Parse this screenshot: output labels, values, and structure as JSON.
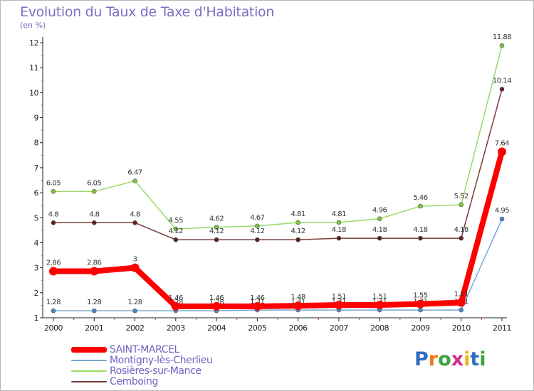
{
  "title": "Evolution du Taux de Taxe d'Habitation",
  "subtitle": "(en %)",
  "logo": {
    "text": "Proxiti",
    "letter_colors": [
      "#2e6fc0",
      "#f07a1a",
      "#3aa33a",
      "#d82c8a",
      "#f0b21a",
      "#2e6fc0",
      "#3aa33a"
    ]
  },
  "chart_data": {
    "type": "line",
    "categories": [
      "2000",
      "2001",
      "2002",
      "2003",
      "2004",
      "2005",
      "2006",
      "2007",
      "2008",
      "2009",
      "2010",
      "2011"
    ],
    "ylim": [
      1,
      12
    ],
    "yticks": [
      "1",
      "2",
      "3",
      "4",
      "5",
      "6",
      "7",
      "8",
      "9",
      "10",
      "11",
      "12"
    ],
    "grid": false,
    "legend_position": "bottom-left",
    "series": [
      {
        "name": "Rosières-sur-Mance",
        "color": "#99d966",
        "marker": "#7cc63e",
        "width": 1.5,
        "values": [
          6.05,
          6.05,
          6.47,
          4.55,
          4.62,
          4.67,
          4.81,
          4.81,
          4.96,
          5.46,
          5.52,
          11.88
        ],
        "labels": [
          "6.05",
          "6.05",
          "6.47",
          "4.55",
          "4.62",
          "4.67",
          "4.81",
          "4.81",
          "4.96",
          "5.46",
          "5.52",
          "11.88"
        ]
      },
      {
        "name": "Cemboing",
        "color": "#7a3b3b",
        "marker": "#5e1f1f",
        "width": 1.5,
        "values": [
          4.8,
          4.8,
          4.8,
          4.12,
          4.12,
          4.12,
          4.12,
          4.18,
          4.18,
          4.18,
          4.18,
          10.14
        ],
        "labels": [
          "4.8",
          "4.8",
          "4.8",
          "4.12",
          "4.12",
          "4.12",
          "4.12",
          "4.18",
          "4.18",
          "4.18",
          "4.18",
          "10.14"
        ]
      },
      {
        "name": "Montigny-lès-Cherlieu",
        "color": "#7aa6cf",
        "marker": "#4f86c2",
        "width": 1.5,
        "values": [
          1.28,
          1.28,
          1.28,
          1.28,
          1.28,
          1.31,
          1.31,
          1.31,
          1.31,
          1.31,
          1.31,
          4.95
        ],
        "labels": [
          "1.28",
          "1.28",
          "1.28",
          "1.28",
          "1.28",
          "1.31",
          "1.31",
          "1.31",
          "1.31",
          "1.31",
          "1.31",
          "4.95"
        ]
      },
      {
        "name": "SAINT-MARCEL",
        "color": "#ff0000",
        "marker": "#ff0000",
        "width": 8,
        "values": [
          2.86,
          2.86,
          3,
          1.46,
          1.46,
          1.46,
          1.48,
          1.51,
          1.51,
          1.55,
          1.61,
          7.64
        ],
        "labels": [
          "2.86",
          "2.86",
          "3",
          "1.46",
          "1.46",
          "1.46",
          "1.48",
          "1.51",
          "1.51",
          "1.55",
          "1.61",
          "7.64"
        ]
      }
    ],
    "legend_order": [
      "SAINT-MARCEL",
      "Montigny-lès-Cherlieu",
      "Rosières-sur-Mance",
      "Cemboing"
    ]
  }
}
